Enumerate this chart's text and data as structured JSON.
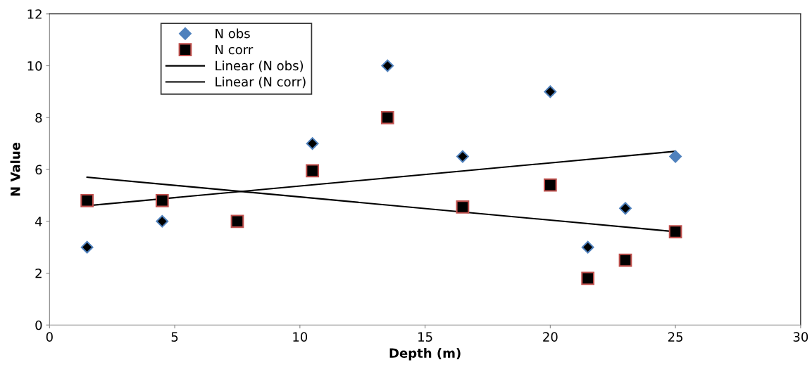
{
  "chart_data": {
    "type": "scatter",
    "xlabel": "Depth (m)",
    "ylabel": "N Value",
    "xlim": [
      0,
      30
    ],
    "xticks": [
      0,
      5,
      10,
      15,
      20,
      25,
      30
    ],
    "ylim": [
      0,
      12
    ],
    "yticks": [
      0,
      2,
      4,
      6,
      8,
      10,
      12
    ],
    "grid": false,
    "legend": "top left",
    "series": [
      {
        "name": "N obs",
        "type": "scatter",
        "marker": "diamond",
        "color": "#4f81bd",
        "x": [
          1.5,
          4.5,
          10.5,
          13.5,
          16.5,
          20,
          21.5,
          23,
          25
        ],
        "values": [
          3,
          4,
          7,
          10,
          6.5,
          9,
          3,
          4.5,
          6.5
        ],
        "colors": [
          "#000000",
          "#000000",
          "#000000",
          "#000000",
          "#000000",
          "#000000",
          "#000000",
          "#000000",
          "#4f81bd"
        ]
      },
      {
        "name": "N corr",
        "type": "scatter",
        "marker": "square",
        "color": "#c0504d",
        "x": [
          1.5,
          4.5,
          7.5,
          10.5,
          13.5,
          16.5,
          20,
          21.5,
          23,
          25
        ],
        "values": [
          4.8,
          4.8,
          4,
          5.95,
          8,
          4.55,
          5.4,
          1.8,
          2.5,
          3.6
        ],
        "colors": [
          "#000000",
          "#000000",
          "#000000",
          "#000000",
          "#000000",
          "#000000",
          "#000000",
          "#000000",
          "#000000",
          "#000000"
        ]
      },
      {
        "name": "Linear (N obs)",
        "type": "line",
        "marker": "none",
        "line_style": "solid",
        "color": "#000000",
        "x": [
          1.5,
          25
        ],
        "values": [
          4.6,
          6.7
        ]
      },
      {
        "name": "Linear (N corr)",
        "type": "line",
        "marker": "none",
        "line_style": "solid",
        "color": "#000000",
        "x": [
          1.5,
          25
        ],
        "values": [
          5.7,
          3.6
        ]
      }
    ]
  }
}
